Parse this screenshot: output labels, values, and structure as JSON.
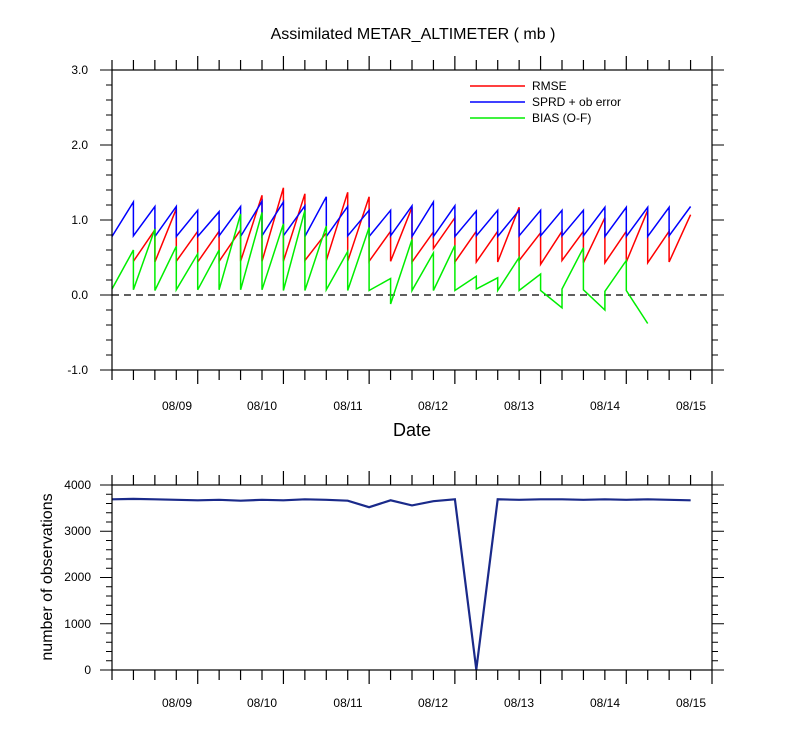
{
  "chart_data": [
    {
      "type": "line",
      "title": "Assimilated METAR_ALTIMETER ( mb )",
      "xlabel": "Date",
      "ylabel": "",
      "ylim": [
        -1.0,
        3.0
      ],
      "yticks": [
        "3.0",
        "2.0",
        "1.0",
        "0.0",
        "-1.0"
      ],
      "xlim": [
        0,
        56
      ],
      "xtick_labels": [
        "08/09",
        "08/10",
        "08/11",
        "08/12",
        "08/13",
        "08/14",
        "08/15"
      ],
      "xtick_positions": [
        8,
        16,
        24,
        32,
        40,
        48,
        56
      ],
      "reference_line": 0.0,
      "legend_position": "top-right",
      "colors": {
        "RMSE": "#ff0000",
        "SPRD + ob error": "#0000ff",
        "BIAS (O-F)": "#00ee00"
      },
      "series": [
        {
          "name": "RMSE",
          "points": [
            [
              2,
              0.45
            ],
            [
              4,
              0.87
            ],
            [
              4,
              0.44
            ],
            [
              6,
              1.15
            ],
            [
              6,
              0.45
            ],
            [
              8,
              0.85
            ],
            [
              8,
              0.44
            ],
            [
              10,
              0.85
            ],
            [
              10,
              0.45
            ],
            [
              12,
              0.87
            ],
            [
              12,
              0.45
            ],
            [
              14,
              1.33
            ],
            [
              14,
              0.45
            ],
            [
              16,
              1.43
            ],
            [
              16,
              0.45
            ],
            [
              18,
              1.35
            ],
            [
              18,
              0.46
            ],
            [
              20,
              0.83
            ],
            [
              20,
              0.46
            ],
            [
              22,
              1.37
            ],
            [
              22,
              0.45
            ],
            [
              24,
              1.31
            ],
            [
              24,
              0.45
            ],
            [
              26,
              0.85
            ],
            [
              26,
              0.45
            ],
            [
              28,
              1.17
            ],
            [
              28,
              0.44
            ],
            [
              30,
              0.84
            ],
            [
              30,
              0.62
            ],
            [
              32,
              1.03
            ],
            [
              32,
              0.44
            ],
            [
              34,
              0.85
            ],
            [
              34,
              0.44
            ],
            [
              36,
              0.85
            ],
            [
              36,
              0.44
            ],
            [
              38,
              1.17
            ],
            [
              38,
              0.46
            ],
            [
              40,
              0.83
            ],
            [
              40,
              0.41
            ],
            [
              42,
              0.85
            ],
            [
              42,
              0.46
            ],
            [
              44,
              0.85
            ],
            [
              44,
              0.43
            ],
            [
              46,
              1.03
            ],
            [
              46,
              0.43
            ],
            [
              48,
              0.85
            ],
            [
              48,
              0.44
            ],
            [
              50,
              1.13
            ],
            [
              50,
              0.43
            ],
            [
              52,
              0.85
            ],
            [
              52,
              0.44
            ],
            [
              54,
              1.07
            ]
          ]
        },
        {
          "name": "SPRD + ob error",
          "points": [
            [
              0,
              0.78
            ],
            [
              2,
              1.24
            ],
            [
              2,
              0.79
            ],
            [
              4,
              1.18
            ],
            [
              4,
              0.78
            ],
            [
              6,
              1.18
            ],
            [
              6,
              0.78
            ],
            [
              8,
              1.13
            ],
            [
              8,
              0.78
            ],
            [
              10,
              1.11
            ],
            [
              10,
              0.79
            ],
            [
              12,
              1.18
            ],
            [
              12,
              0.78
            ],
            [
              14,
              1.25
            ],
            [
              14,
              0.79
            ],
            [
              16,
              1.24
            ],
            [
              16,
              0.79
            ],
            [
              18,
              1.19
            ],
            [
              18,
              0.78
            ],
            [
              20,
              1.31
            ],
            [
              20,
              0.78
            ],
            [
              22,
              1.18
            ],
            [
              22,
              0.79
            ],
            [
              24,
              1.13
            ],
            [
              24,
              0.78
            ],
            [
              26,
              1.13
            ],
            [
              26,
              0.79
            ],
            [
              28,
              1.19
            ],
            [
              28,
              0.78
            ],
            [
              30,
              1.24
            ],
            [
              30,
              0.78
            ],
            [
              32,
              1.19
            ],
            [
              32,
              0.78
            ],
            [
              34,
              1.12
            ],
            [
              34,
              0.79
            ],
            [
              36,
              1.13
            ],
            [
              36,
              0.78
            ],
            [
              38,
              1.13
            ],
            [
              38,
              0.79
            ],
            [
              40,
              1.13
            ],
            [
              40,
              0.79
            ],
            [
              42,
              1.13
            ],
            [
              42,
              0.79
            ],
            [
              44,
              1.13
            ],
            [
              44,
              0.79
            ],
            [
              46,
              1.17
            ],
            [
              46,
              0.78
            ],
            [
              48,
              1.17
            ],
            [
              48,
              0.78
            ],
            [
              50,
              1.17
            ],
            [
              50,
              0.78
            ],
            [
              52,
              1.17
            ],
            [
              52,
              0.79
            ],
            [
              54,
              1.18
            ]
          ]
        },
        {
          "name": "BIAS (O-F)",
          "points": [
            [
              0,
              0.08
            ],
            [
              2,
              0.6
            ],
            [
              2,
              0.07
            ],
            [
              4,
              0.88
            ],
            [
              4,
              0.06
            ],
            [
              6,
              0.65
            ],
            [
              6,
              0.07
            ],
            [
              8,
              0.55
            ],
            [
              8,
              0.07
            ],
            [
              10,
              0.6
            ],
            [
              10,
              0.07
            ],
            [
              12,
              1.08
            ],
            [
              12,
              0.07
            ],
            [
              14,
              1.1
            ],
            [
              14,
              0.07
            ],
            [
              16,
              0.95
            ],
            [
              16,
              0.06
            ],
            [
              18,
              1.13
            ],
            [
              18,
              0.06
            ],
            [
              20,
              0.92
            ],
            [
              20,
              0.07
            ],
            [
              22,
              0.58
            ],
            [
              22,
              0.06
            ],
            [
              24,
              0.9
            ],
            [
              24,
              0.06
            ],
            [
              26,
              0.22
            ],
            [
              26,
              -0.12
            ],
            [
              28,
              0.74
            ],
            [
              28,
              0.06
            ],
            [
              30,
              0.56
            ],
            [
              30,
              0.06
            ],
            [
              32,
              0.66
            ],
            [
              32,
              0.06
            ],
            [
              34,
              0.25
            ],
            [
              34,
              0.08
            ],
            [
              36,
              0.23
            ],
            [
              36,
              0.06
            ],
            [
              38,
              0.5
            ],
            [
              38,
              0.06
            ],
            [
              40,
              0.28
            ],
            [
              40,
              0.06
            ],
            [
              42,
              -0.17
            ],
            [
              42,
              0.08
            ],
            [
              44,
              0.63
            ],
            [
              44,
              0.07
            ],
            [
              46,
              -0.2
            ],
            [
              46,
              0.05
            ],
            [
              48,
              0.46
            ],
            [
              48,
              0.06
            ],
            [
              50,
              -0.38
            ]
          ]
        }
      ]
    },
    {
      "type": "line",
      "title": "",
      "xlabel": "",
      "ylabel": "number of observations",
      "ylim": [
        0,
        4000
      ],
      "yticks": [
        "4000",
        "3000",
        "2000",
        "1000",
        "0"
      ],
      "xlim": [
        0,
        56
      ],
      "xtick_labels": [
        "08/09",
        "08/10",
        "08/11",
        "08/12",
        "08/13",
        "08/14",
        "08/15"
      ],
      "xtick_positions": [
        8,
        16,
        24,
        32,
        40,
        48,
        56
      ],
      "colors": {
        "possible": "#1a2a8a",
        "assimilated": "#1a2a8a"
      },
      "series": [
        {
          "name": "",
          "x": [
            0,
            2,
            4,
            6,
            8,
            10,
            12,
            14,
            16,
            18,
            20,
            22,
            24,
            26,
            28,
            30,
            32,
            34,
            36,
            38,
            40,
            42,
            44,
            46,
            48,
            50,
            52,
            54
          ],
          "values": [
            3690,
            3700,
            3690,
            3680,
            3670,
            3680,
            3660,
            3680,
            3670,
            3690,
            3680,
            3660,
            3520,
            3670,
            3560,
            3650,
            3690,
            10,
            3690,
            3680,
            3690,
            3690,
            3680,
            3690,
            3680,
            3690,
            3680,
            3670
          ]
        }
      ]
    }
  ]
}
